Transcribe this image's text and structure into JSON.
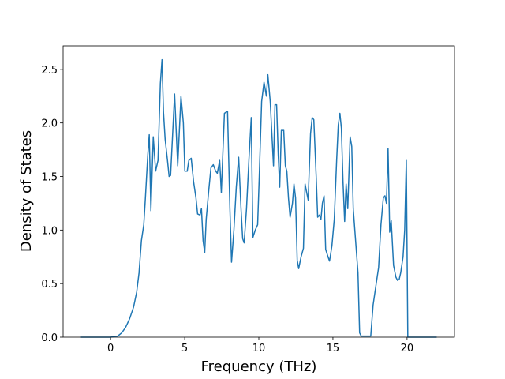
{
  "chart_data": {
    "type": "line",
    "x_label": "Frequency (THz)",
    "y_label": "Density of States",
    "xlim": [
      -3.2,
      23.2
    ],
    "ylim": [
      0,
      2.72
    ],
    "xticks": [
      0,
      5,
      10,
      15,
      20
    ],
    "yticks": [
      {
        "value": 0,
        "label": "0.0"
      },
      {
        "value": 0.5,
        "label": "0.5"
      },
      {
        "value": 1,
        "label": "1.0"
      },
      {
        "value": 1.5,
        "label": "1.5"
      },
      {
        "value": 2,
        "label": "2.0"
      },
      {
        "value": 2.5,
        "label": "2.5"
      }
    ],
    "grid": false,
    "series": [
      {
        "color": "#1f77b4",
        "x": [
          -2.0,
          0,
          0.48,
          0.75,
          1.01,
          1.28,
          1.55,
          1.76,
          1.92,
          2.08,
          2.24,
          2.35,
          2.51,
          2.61,
          2.72,
          2.88,
          3.04,
          3.2,
          3.36,
          3.47,
          3.57,
          3.68,
          3.84,
          3.95,
          4.05,
          4.32,
          4.53,
          4.75,
          4.91,
          5.01,
          5.17,
          5.28,
          5.44,
          5.6,
          5.76,
          5.87,
          6.03,
          6.13,
          6.24,
          6.35,
          6.45,
          6.61,
          6.77,
          6.93,
          7.09,
          7.2,
          7.36,
          7.47,
          7.68,
          7.89,
          8.05,
          8.16,
          8.32,
          8.48,
          8.64,
          8.8,
          8.91,
          9.01,
          9.17,
          9.33,
          9.49,
          9.6,
          9.76,
          9.92,
          10.03,
          10.19,
          10.35,
          10.51,
          10.61,
          10.77,
          10.88,
          10.99,
          11.09,
          11.2,
          11.31,
          11.41,
          11.52,
          11.68,
          11.79,
          11.89,
          12.0,
          12.11,
          12.27,
          12.37,
          12.48,
          12.59,
          12.69,
          12.85,
          13.01,
          13.12,
          13.23,
          13.33,
          13.49,
          13.6,
          13.71,
          13.87,
          13.97,
          14.08,
          14.19,
          14.29,
          14.4,
          14.51,
          14.67,
          14.77,
          14.93,
          15.09,
          15.25,
          15.36,
          15.47,
          15.57,
          15.68,
          15.79,
          15.89,
          16.0,
          16.16,
          16.27,
          16.37,
          16.53,
          16.69,
          16.8,
          16.91,
          17.55,
          17.71,
          17.92,
          18.08,
          18.24,
          18.4,
          18.51,
          18.61,
          18.72,
          18.83,
          18.93,
          19.09,
          19.25,
          19.36,
          19.47,
          19.57,
          19.73,
          19.84,
          19.95,
          20.05,
          22.0
        ],
        "values": [
          0,
          0,
          0.01,
          0.04,
          0.09,
          0.17,
          0.28,
          0.42,
          0.6,
          0.9,
          1.05,
          1.3,
          1.7,
          1.89,
          1.18,
          1.87,
          1.55,
          1.65,
          2.37,
          2.59,
          2.1,
          1.85,
          1.65,
          1.5,
          1.51,
          2.27,
          1.6,
          2.25,
          2.0,
          1.55,
          1.55,
          1.65,
          1.67,
          1.45,
          1.3,
          1.15,
          1.14,
          1.2,
          0.9,
          0.79,
          1.1,
          1.35,
          1.58,
          1.61,
          1.55,
          1.53,
          1.65,
          1.35,
          2.09,
          2.11,
          1.2,
          0.7,
          1.0,
          1.4,
          1.68,
          1.2,
          0.92,
          0.88,
          1.2,
          1.65,
          2.05,
          0.93,
          1.0,
          1.05,
          1.5,
          2.2,
          2.38,
          2.25,
          2.45,
          2.2,
          1.9,
          1.6,
          2.17,
          2.17,
          1.7,
          1.4,
          1.93,
          1.93,
          1.6,
          1.55,
          1.3,
          1.12,
          1.25,
          1.43,
          1.3,
          0.72,
          0.64,
          0.75,
          0.83,
          1.43,
          1.35,
          1.28,
          1.9,
          2.05,
          2.03,
          1.5,
          1.12,
          1.14,
          1.1,
          1.25,
          1.32,
          0.82,
          0.75,
          0.71,
          0.85,
          1.1,
          1.65,
          1.98,
          2.09,
          1.95,
          1.45,
          1.08,
          1.43,
          1.2,
          1.87,
          1.78,
          1.2,
          0.9,
          0.6,
          0.04,
          0.01,
          0.01,
          0.3,
          0.5,
          0.65,
          1.05,
          1.3,
          1.32,
          1.25,
          1.76,
          0.98,
          1.09,
          0.67,
          0.56,
          0.53,
          0.54,
          0.6,
          0.75,
          1.0,
          1.65,
          0,
          0
        ]
      }
    ]
  }
}
